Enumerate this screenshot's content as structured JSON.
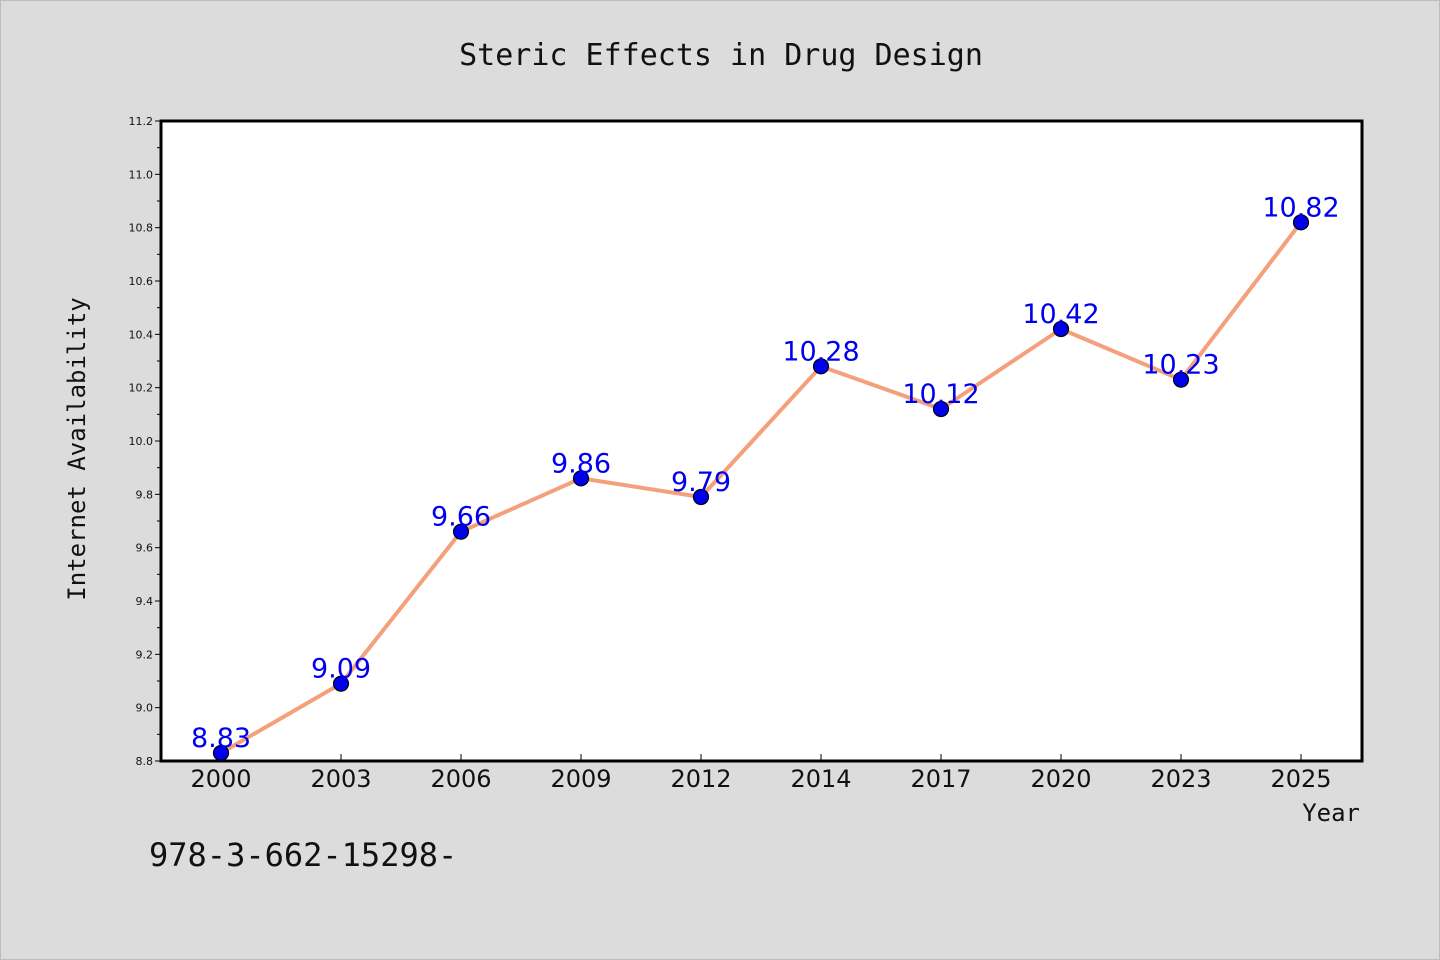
{
  "chart_data": {
    "type": "line",
    "title": "Steric Effects in Drug Design",
    "xlabel": "Year",
    "ylabel": "Internet Availability",
    "categories": [
      "2000",
      "2003",
      "2006",
      "2009",
      "2012",
      "2014",
      "2017",
      "2020",
      "2023",
      "2025"
    ],
    "values": [
      8.83,
      9.09,
      9.66,
      9.86,
      9.79,
      10.28,
      10.12,
      10.42,
      10.23,
      10.82
    ],
    "data_labels": [
      "8.83",
      "9.09",
      "9.66",
      "9.86",
      "9.79",
      "10.28",
      "10.12",
      "10.42",
      "10.23",
      "10.82"
    ],
    "ylim": [
      8.8,
      11.2
    ],
    "yticks": [
      8.8,
      9.0,
      9.2,
      9.4,
      9.6,
      9.8,
      10.0,
      10.2,
      10.4,
      10.6,
      10.8,
      11.0,
      11.2
    ],
    "ytick_labels": [
      "8.8",
      "9.0",
      "9.2",
      "9.4",
      "9.6",
      "9.8",
      "10.0",
      "10.2",
      "10.4",
      "10.6",
      "10.8",
      "11.0",
      "11.2"
    ],
    "grid": false,
    "line_color": "#f4a07c",
    "marker_color": "#0000ee",
    "label_color": "#0000ee",
    "annotation": "978-3-662-15298-"
  }
}
